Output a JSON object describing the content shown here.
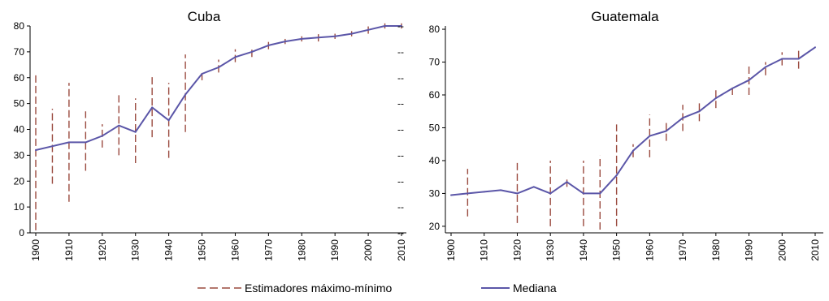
{
  "chart_data": [
    {
      "type": "line",
      "title": "Cuba",
      "xlabel": "",
      "ylabel": "",
      "ylim": [
        0,
        80
      ],
      "yticks": [
        0,
        10,
        20,
        30,
        40,
        50,
        60,
        70,
        80
      ],
      "xlim": [
        1900,
        2010
      ],
      "xticks": [
        1900,
        1910,
        1920,
        1930,
        1940,
        1950,
        1960,
        1970,
        1980,
        1990,
        2000,
        2010
      ],
      "series": [
        {
          "name": "Mediana",
          "color": "#5b56a8",
          "points": [
            [
              1900,
              32
            ],
            [
              1905,
              33.5
            ],
            [
              1910,
              35
            ],
            [
              1915,
              35
            ],
            [
              1920,
              37.5
            ],
            [
              1925,
              41.5
            ],
            [
              1930,
              39
            ],
            [
              1935,
              48.5
            ],
            [
              1940,
              43.5
            ],
            [
              1945,
              53.5
            ],
            [
              1950,
              61.5
            ],
            [
              1955,
              64
            ],
            [
              1960,
              68
            ],
            [
              1965,
              70
            ],
            [
              1970,
              72.5
            ],
            [
              1975,
              74
            ],
            [
              1980,
              75
            ],
            [
              1985,
              75.5
            ],
            [
              1990,
              76
            ],
            [
              1995,
              77
            ],
            [
              2000,
              78.5
            ],
            [
              2005,
              80
            ],
            [
              2010,
              80
            ]
          ]
        }
      ],
      "ranges": {
        "name": "Estimadores máximo-mínimo",
        "color": "#9a4a3f",
        "items": [
          [
            1900,
            1,
            62
          ],
          [
            1905,
            19,
            48
          ],
          [
            1910,
            12,
            58
          ],
          [
            1915,
            24,
            47
          ],
          [
            1920,
            33,
            42
          ],
          [
            1925,
            30,
            54
          ],
          [
            1930,
            27,
            52
          ],
          [
            1935,
            37,
            61
          ],
          [
            1940,
            29,
            58
          ],
          [
            1945,
            39,
            69
          ],
          [
            1950,
            59,
            62
          ],
          [
            1955,
            62,
            67
          ],
          [
            1960,
            66,
            71
          ],
          [
            1965,
            68,
            72
          ],
          [
            1970,
            71,
            74
          ],
          [
            1975,
            73,
            75
          ],
          [
            1980,
            74,
            76
          ],
          [
            1985,
            74,
            77
          ],
          [
            1990,
            75,
            77
          ],
          [
            1995,
            76,
            78
          ],
          [
            2000,
            77,
            80
          ],
          [
            2005,
            79,
            81
          ],
          [
            2010,
            79,
            81
          ]
        ]
      }
    },
    {
      "type": "line",
      "title": "Guatemala",
      "xlabel": "",
      "ylabel": "",
      "ylim": [
        18,
        81
      ],
      "yticks": [
        20,
        30,
        40,
        50,
        60,
        70,
        80
      ],
      "xlim": [
        1900,
        2010
      ],
      "xticks": [
        1900,
        1910,
        1920,
        1930,
        1940,
        1950,
        1960,
        1970,
        1980,
        1990,
        2000,
        2010
      ],
      "series": [
        {
          "name": "Mediana",
          "color": "#5b56a8",
          "points": [
            [
              1900,
              29.5
            ],
            [
              1905,
              30
            ],
            [
              1910,
              30.5
            ],
            [
              1915,
              31
            ],
            [
              1920,
              30
            ],
            [
              1925,
              32
            ],
            [
              1930,
              30
            ],
            [
              1935,
              33.5
            ],
            [
              1940,
              30
            ],
            [
              1945,
              30
            ],
            [
              1950,
              35.5
            ],
            [
              1955,
              43
            ],
            [
              1960,
              47.5
            ],
            [
              1965,
              49
            ],
            [
              1970,
              53
            ],
            [
              1975,
              55
            ],
            [
              1980,
              59
            ],
            [
              1985,
              62
            ],
            [
              1990,
              64.5
            ],
            [
              1995,
              68.5
            ],
            [
              2000,
              71
            ],
            [
              2005,
              71
            ],
            [
              2010,
              74.5
            ]
          ]
        }
      ],
      "ranges": {
        "name": "Estimadores máximo-mínimo",
        "color": "#9a4a3f",
        "items": [
          [
            1905,
            23,
            37.5
          ],
          [
            1920,
            21,
            39.5
          ],
          [
            1930,
            20,
            40
          ],
          [
            1935,
            32,
            35
          ],
          [
            1940,
            20,
            40
          ],
          [
            1945,
            19,
            41.5
          ],
          [
            1950,
            20,
            51
          ],
          [
            1955,
            41,
            45
          ],
          [
            1960,
            41,
            54
          ],
          [
            1965,
            46,
            52
          ],
          [
            1970,
            49,
            57
          ],
          [
            1975,
            52,
            58
          ],
          [
            1980,
            56,
            62
          ],
          [
            1985,
            60,
            63
          ],
          [
            1990,
            60,
            69
          ],
          [
            1995,
            66,
            70
          ],
          [
            2000,
            69,
            73
          ],
          [
            2005,
            68,
            74
          ]
        ]
      }
    }
  ],
  "legend": {
    "position": "bottom",
    "items": [
      {
        "label": "Estimadores máximo-mínimo",
        "style": "dashed",
        "color": "#9a4a3f"
      },
      {
        "label": "Mediana",
        "style": "solid",
        "color": "#5b56a8"
      }
    ]
  }
}
